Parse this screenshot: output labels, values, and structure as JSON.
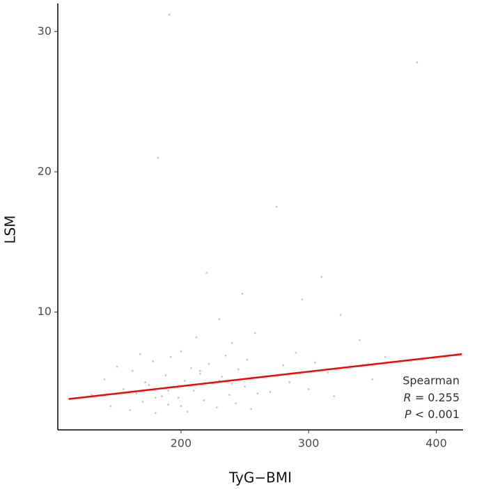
{
  "chart_data": {
    "type": "scatter",
    "x_label": "TyG−BMI",
    "y_label": "LSM",
    "xlim": [
      103.5,
      421
    ],
    "ylim": [
      1.6,
      32
    ],
    "xticks": [
      200,
      300,
      400
    ],
    "yticks": [
      10,
      20,
      30
    ],
    "color": "#c8c8c8",
    "x": [
      130,
      140,
      145,
      150,
      155,
      160,
      162,
      165,
      168,
      170,
      172,
      175,
      178,
      180,
      182,
      185,
      188,
      190,
      192,
      195,
      198,
      200,
      203,
      205,
      208,
      210,
      212,
      215,
      218,
      220,
      222,
      225,
      228,
      230,
      232,
      235,
      238,
      240,
      243,
      245,
      248,
      250,
      252,
      255,
      258,
      260,
      191,
      270,
      275,
      280,
      285,
      290,
      295,
      300,
      305,
      310,
      315,
      320,
      325,
      340,
      350,
      360,
      385,
      190,
      200,
      215,
      240,
      260,
      180,
      230
    ],
    "values": [
      4.1,
      5.2,
      3.3,
      6.1,
      4.5,
      3.0,
      5.8,
      4.2,
      7.0,
      3.6,
      5.0,
      4.8,
      6.5,
      2.8,
      21.0,
      4.0,
      5.5,
      3.4,
      6.8,
      4.6,
      3.9,
      7.2,
      5.1,
      2.9,
      6.0,
      4.4,
      8.2,
      5.6,
      3.7,
      12.8,
      6.3,
      4.9,
      3.2,
      9.5,
      5.4,
      6.9,
      4.1,
      7.8,
      3.5,
      5.9,
      11.3,
      4.7,
      6.6,
      3.1,
      8.5,
      5.3,
      31.2,
      4.3,
      17.5,
      6.2,
      5.0,
      7.1,
      10.9,
      4.5,
      6.4,
      12.5,
      5.7,
      4.0,
      9.8,
      8.0,
      5.2,
      6.8,
      27.8,
      4.4,
      3.3,
      5.8,
      4.9,
      4.2,
      3.9,
      5.1
    ],
    "fit": {
      "type": "line",
      "color": "#ff0000",
      "x": [
        112,
        420
      ],
      "values": [
        3.8,
        7.0
      ]
    },
    "annotation": {
      "method": "Spearman",
      "r": [
        "R",
        "= 0.255"
      ],
      "p": [
        "P",
        "< 0.001"
      ]
    }
  }
}
